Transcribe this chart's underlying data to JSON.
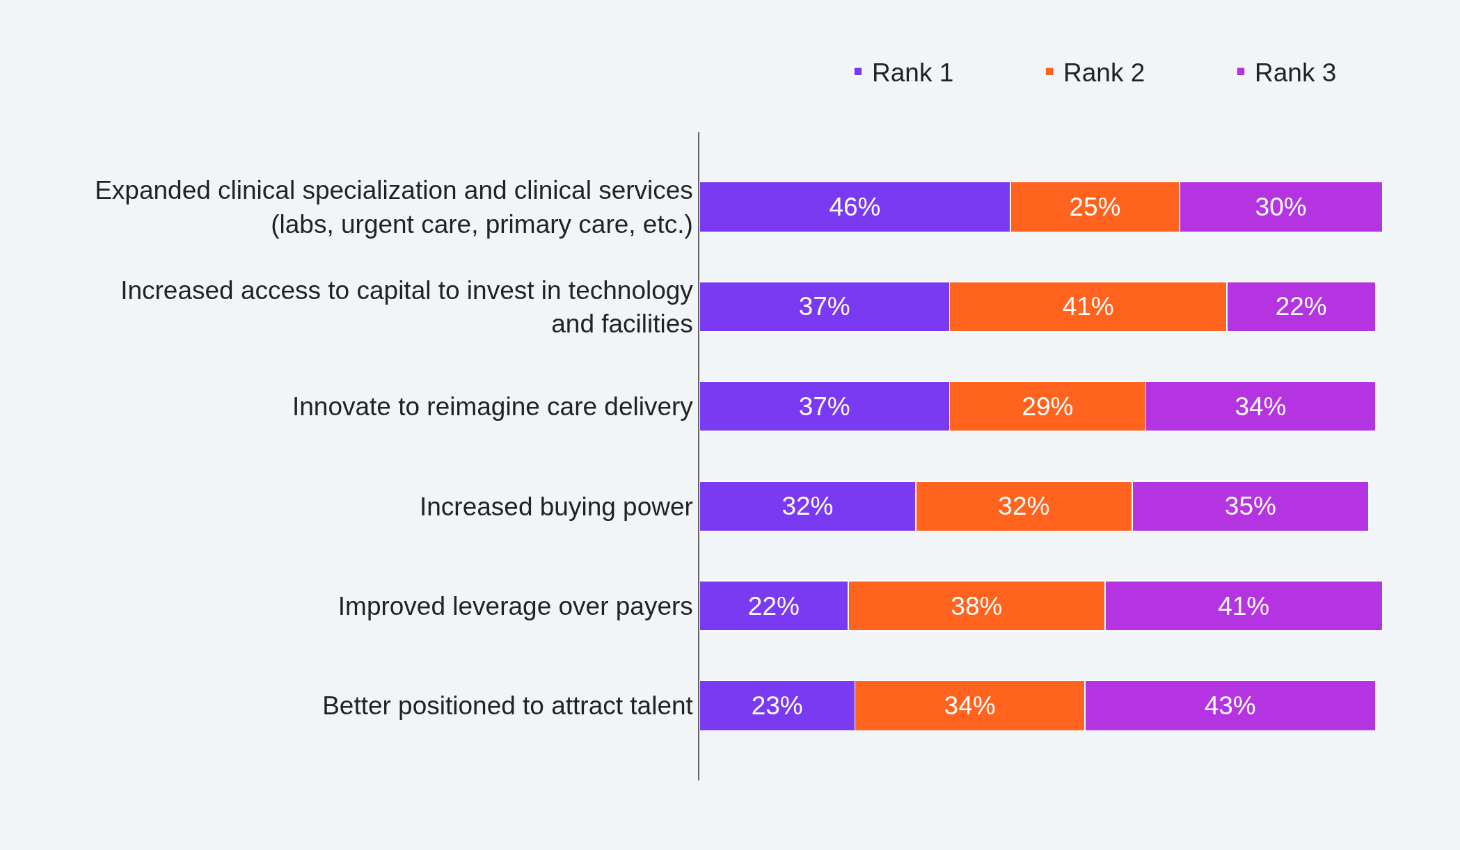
{
  "chart_data": {
    "type": "bar",
    "orientation": "horizontal",
    "stacked": true,
    "legend": "top right",
    "categories": [
      "Expanded clinical specialization and clinical services (labs, urgent care, primary care, etc.)",
      "Increased access to capital to invest in technology and facilities",
      "Innovate to reimagine care delivery",
      "Increased buying power",
      "Improved leverage over payers",
      "Better positioned to attract talent"
    ],
    "series": [
      {
        "name": "Rank 1",
        "color": "#7a3af2",
        "values": [
          46,
          37,
          37,
          32,
          22,
          23
        ],
        "value_labels": [
          "46%",
          "37%",
          "37%",
          "32%",
          "22%",
          "23%"
        ]
      },
      {
        "name": "Rank 2",
        "color": "#ff631e",
        "values": [
          25,
          41,
          29,
          32,
          38,
          34
        ],
        "value_labels": [
          "25%",
          "41%",
          "29%",
          "32%",
          "38%",
          "34%"
        ]
      },
      {
        "name": "Rank 3",
        "color": "#b534e2",
        "values": [
          30,
          22,
          34,
          35,
          41,
          43
        ],
        "value_labels": [
          "30%",
          "22%",
          "34%",
          "35%",
          "41%",
          "43%"
        ]
      }
    ]
  }
}
